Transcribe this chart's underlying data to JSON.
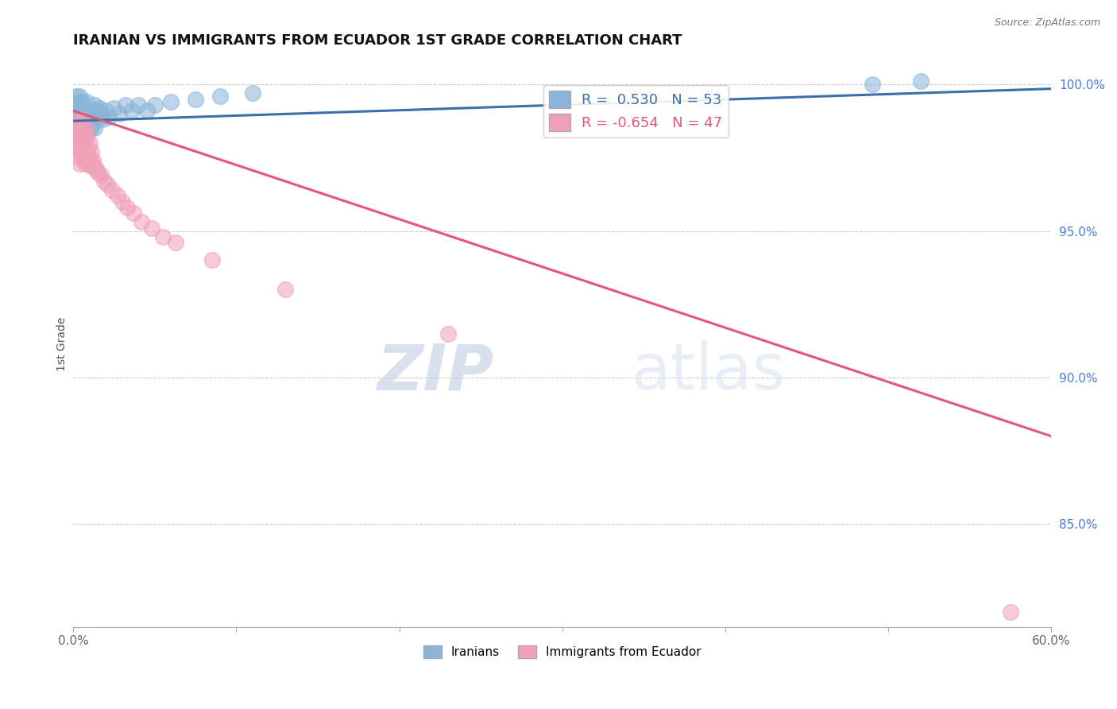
{
  "title": "IRANIAN VS IMMIGRANTS FROM ECUADOR 1ST GRADE CORRELATION CHART",
  "source_text": "Source: ZipAtlas.com",
  "ylabel": "1st Grade",
  "xlim": [
    0.0,
    0.6
  ],
  "ylim": [
    0.815,
    1.008
  ],
  "xtick_vals": [
    0.0,
    0.1,
    0.2,
    0.3,
    0.4,
    0.5,
    0.6
  ],
  "xtick_labels": [
    "0.0%",
    "",
    "",
    "",
    "",
    "",
    "60.0%"
  ],
  "ytick_vals": [
    0.85,
    0.9,
    0.95,
    1.0
  ],
  "ytick_labels": [
    "85.0%",
    "90.0%",
    "95.0%",
    "100.0%"
  ],
  "blue_color": "#8ab4d8",
  "pink_color": "#f0a0b8",
  "blue_line_color": "#3a6fa8",
  "pink_line_color": "#e05878",
  "legend_blue_label": "R =  0.530   N = 53",
  "legend_pink_label": "R = -0.654   N = 47",
  "iranians_label": "Iranians",
  "ecuador_label": "Immigrants from Ecuador",
  "blue_x": [
    0.001,
    0.002,
    0.002,
    0.003,
    0.003,
    0.003,
    0.004,
    0.004,
    0.004,
    0.004,
    0.005,
    0.005,
    0.005,
    0.006,
    0.006,
    0.006,
    0.006,
    0.007,
    0.007,
    0.007,
    0.008,
    0.008,
    0.008,
    0.009,
    0.009,
    0.01,
    0.01,
    0.011,
    0.011,
    0.012,
    0.012,
    0.013,
    0.013,
    0.014,
    0.015,
    0.016,
    0.017,
    0.018,
    0.02,
    0.022,
    0.025,
    0.028,
    0.032,
    0.036,
    0.04,
    0.045,
    0.05,
    0.06,
    0.075,
    0.09,
    0.11,
    0.49,
    0.52
  ],
  "blue_y": [
    0.988,
    0.993,
    0.996,
    0.985,
    0.99,
    0.994,
    0.982,
    0.988,
    0.992,
    0.996,
    0.984,
    0.989,
    0.993,
    0.981,
    0.986,
    0.99,
    0.994,
    0.983,
    0.988,
    0.992,
    0.986,
    0.99,
    0.994,
    0.984,
    0.988,
    0.987,
    0.991,
    0.985,
    0.989,
    0.987,
    0.991,
    0.985,
    0.993,
    0.991,
    0.988,
    0.992,
    0.99,
    0.988,
    0.991,
    0.989,
    0.992,
    0.99,
    0.993,
    0.991,
    0.993,
    0.991,
    0.993,
    0.994,
    0.995,
    0.996,
    0.997,
    1.0,
    1.001
  ],
  "pink_x": [
    0.001,
    0.002,
    0.002,
    0.003,
    0.003,
    0.003,
    0.004,
    0.004,
    0.004,
    0.005,
    0.005,
    0.005,
    0.006,
    0.006,
    0.006,
    0.007,
    0.007,
    0.007,
    0.008,
    0.008,
    0.008,
    0.009,
    0.009,
    0.01,
    0.01,
    0.011,
    0.011,
    0.012,
    0.013,
    0.014,
    0.015,
    0.017,
    0.019,
    0.021,
    0.024,
    0.027,
    0.03,
    0.033,
    0.037,
    0.042,
    0.048,
    0.055,
    0.063,
    0.085,
    0.13,
    0.23,
    0.575
  ],
  "pink_y": [
    0.982,
    0.978,
    0.987,
    0.975,
    0.981,
    0.987,
    0.973,
    0.979,
    0.985,
    0.977,
    0.983,
    0.988,
    0.975,
    0.981,
    0.985,
    0.973,
    0.978,
    0.983,
    0.975,
    0.981,
    0.985,
    0.973,
    0.978,
    0.975,
    0.98,
    0.972,
    0.977,
    0.974,
    0.972,
    0.971,
    0.97,
    0.969,
    0.967,
    0.966,
    0.964,
    0.962,
    0.96,
    0.958,
    0.956,
    0.953,
    0.951,
    0.948,
    0.946,
    0.94,
    0.93,
    0.915,
    0.82
  ],
  "blue_line_x0": 0.0,
  "blue_line_x1": 0.6,
  "blue_line_y0": 0.9875,
  "blue_line_y1": 0.9985,
  "pink_line_x0": 0.0,
  "pink_line_x1": 0.6,
  "pink_line_y0": 0.991,
  "pink_line_y1": 0.88
}
